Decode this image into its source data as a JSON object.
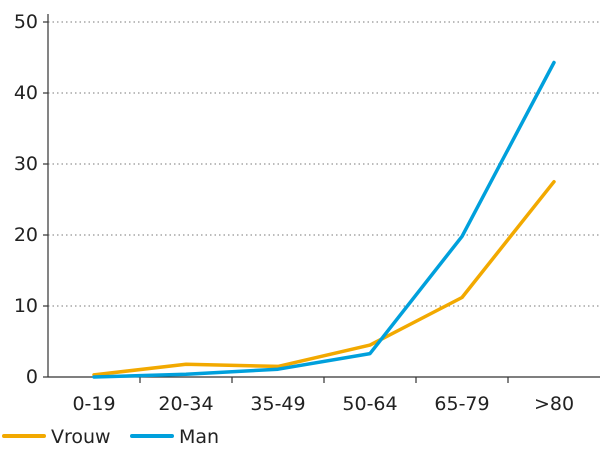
{
  "chart_data": {
    "type": "line",
    "categories": [
      "0-19",
      "20-34",
      "35-49",
      "50-64",
      "65-79",
      ">80"
    ],
    "series": [
      {
        "name": "Vrouw",
        "color": "#f2a900",
        "values": [
          0.3,
          1.8,
          1.5,
          4.5,
          11.2,
          27.5
        ]
      },
      {
        "name": "Man",
        "color": "#00a0dc",
        "values": [
          0.0,
          0.4,
          1.1,
          3.3,
          19.8,
          44.3
        ]
      }
    ],
    "yticks": [
      0,
      10,
      20,
      30,
      40,
      50
    ],
    "ylim": [
      0,
      50
    ],
    "title": "",
    "xlabel": "",
    "ylabel": "",
    "grid": "horizontal dotted",
    "legend": "bottom-left"
  }
}
